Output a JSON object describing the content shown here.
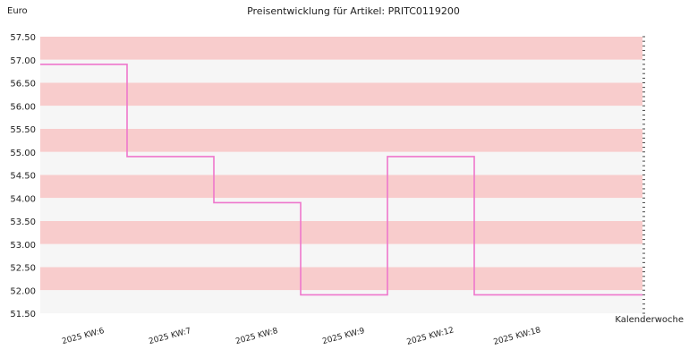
{
  "chart_data": {
    "type": "line",
    "step": true,
    "title": "Preisentwicklung für Artikel: PRITC0119200",
    "ylabel": "Euro",
    "xlabel": "Kalenderwoche",
    "ylim": [
      51.5,
      57.5
    ],
    "yticks": [
      "57.50",
      "57.00",
      "56.50",
      "56.00",
      "55.50",
      "55.00",
      "54.50",
      "54.00",
      "53.50",
      "53.00",
      "52.50",
      "52.00",
      "51.50"
    ],
    "categories": [
      "2025 KW:6",
      "2025 KW:7",
      "2025 KW:8",
      "2025 KW:9",
      "2025 KW:12",
      "2025 KW:18"
    ],
    "series": [
      {
        "values": [
          56.9,
          54.9,
          53.9,
          51.9,
          54.9,
          51.9
        ]
      }
    ],
    "band_colors": [
      "#f8cccc",
      "#f6f6f6"
    ],
    "line_color": "#ee77cc",
    "grid": false
  }
}
